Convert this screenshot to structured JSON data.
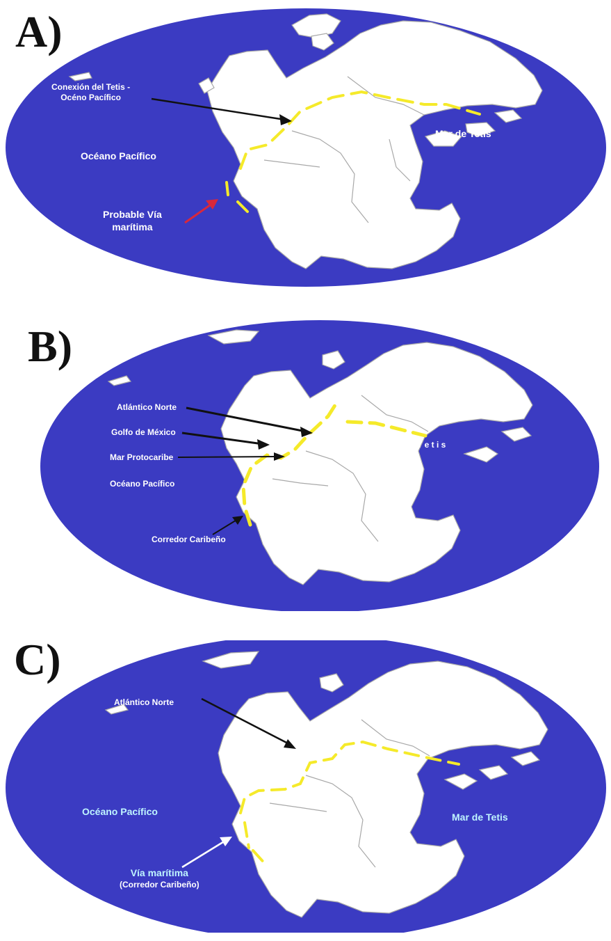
{
  "colors": {
    "ocean": "#3b3bc2",
    "land": "#ffffff",
    "borders": "#a8a8a8",
    "route_yellow": "#f5ea2a",
    "arrow_black": "#111111",
    "arrow_red": "#d8283c",
    "label_white": "#ffffff",
    "label_cyan": "#bff4ff"
  },
  "panels": [
    {
      "letter": "A)",
      "labels": {
        "conexion_line1": "Conexión del Tetis -",
        "conexion_line2": "Océno Pacífico",
        "oceano": "Océano Pacífico",
        "mar_tetis": "Mar de Tetis",
        "via_line1": "Probable Vía",
        "via_line2": "marítima"
      }
    },
    {
      "letter": "B)",
      "labels": {
        "atlantico": "Atlántico Norte",
        "golfo": "Golfo de México",
        "protocaribe": "Mar Protocaribe",
        "oceano": "Océano Pacífico",
        "tetis": "T e t i s",
        "corredor": "Corredor Caribeño"
      }
    },
    {
      "letter": "C)",
      "labels": {
        "atlantico": "Atlántico Norte",
        "oceano": "Océano Pacífico",
        "mar_tetis": "Mar de Tetis",
        "via_line1": "Vía marítima",
        "via_line2": "(Corredor Caribeño)"
      }
    }
  ]
}
